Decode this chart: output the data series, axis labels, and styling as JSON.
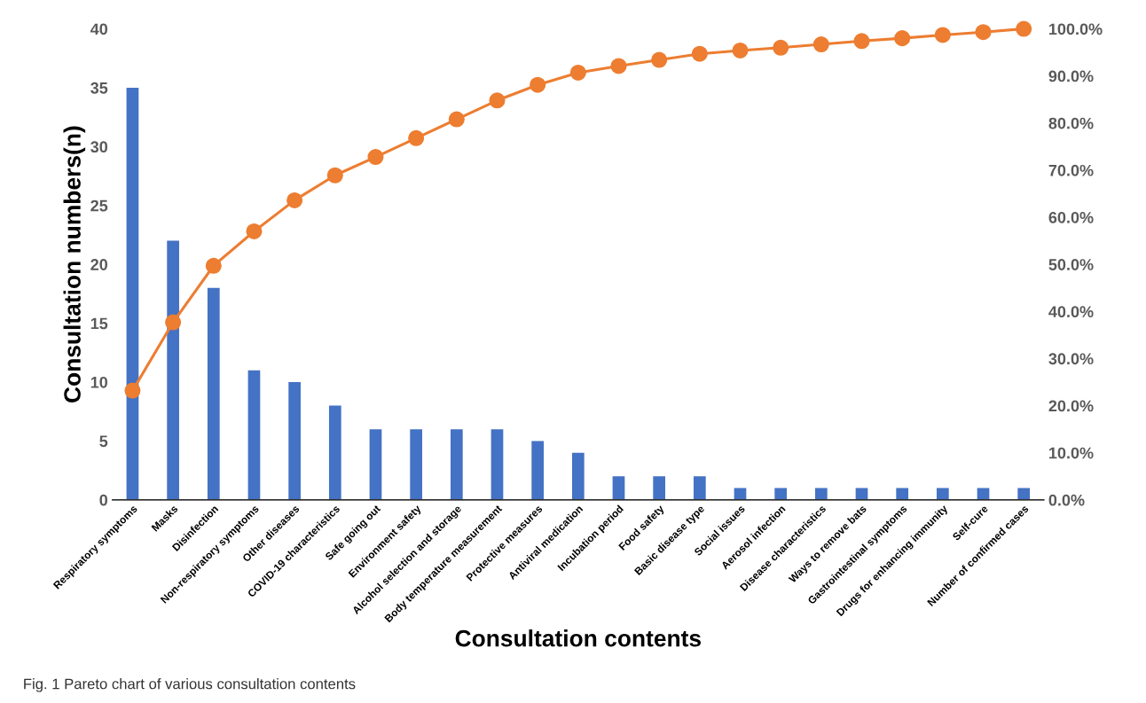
{
  "chart_data": {
    "type": "bar",
    "xlabel": "Consultation contents",
    "ylabel": "Consultation numbers(n)",
    "annotations": [
      "Fig. 1 Pareto chart of various consultation contents"
    ],
    "categories": [
      "Respiratory symptoms",
      "Masks",
      "Disinfection",
      "Non-respiratory symptoms",
      "Other diseases",
      "COVID-19 characteristics",
      "Safe going out",
      "Environment safety",
      "Alcohol selection and storage",
      "Body temperature measurement",
      "Protective measures",
      "Antiviral medication",
      "Incubation period",
      "Food safety",
      "Basic disease type",
      "Social issues",
      "Aerosol infection",
      "Disease characteristics",
      "Ways to remove bats",
      "Gastrointestinal symptoms",
      "Drugs for enhancing immunity",
      "Self-cure",
      "Number of confirmed cases"
    ],
    "series": [
      {
        "color": "#4472c4",
        "values": [
          35,
          22,
          18,
          11,
          10,
          8,
          6,
          6,
          6,
          6,
          5,
          4,
          2,
          2,
          2,
          1,
          1,
          1,
          1,
          1,
          1,
          1,
          1
        ]
      },
      {
        "type": "line",
        "axis": "y2",
        "color": "#ed7d31",
        "marker": "circle",
        "values": [
          23.2,
          37.7,
          49.7,
          57.0,
          63.6,
          68.9,
          72.8,
          76.8,
          80.8,
          84.8,
          88.1,
          90.7,
          92.1,
          93.4,
          94.7,
          95.4,
          96.0,
          96.7,
          97.4,
          98.0,
          98.7,
          99.3,
          100.0
        ]
      }
    ],
    "ylim": [
      0,
      40
    ],
    "yticks": [
      0,
      5,
      10,
      15,
      20,
      25,
      30,
      35,
      40
    ],
    "y2lim": [
      0,
      100
    ],
    "y2ticks": [
      {
        "value": 0,
        "label": "0.0%"
      },
      {
        "value": 10,
        "label": "10.0%"
      },
      {
        "value": 20,
        "label": "20.0%"
      },
      {
        "value": 30,
        "label": "30.0%"
      },
      {
        "value": 40,
        "label": "40.0%"
      },
      {
        "value": 50,
        "label": "50.0%"
      },
      {
        "value": 60,
        "label": "60.0%"
      },
      {
        "value": 70,
        "label": "70.0%"
      },
      {
        "value": 80,
        "label": "80.0%"
      },
      {
        "value": 90,
        "label": "90.0%"
      },
      {
        "value": 100,
        "label": "100.0%"
      }
    ],
    "grid": false,
    "legend": false
  }
}
